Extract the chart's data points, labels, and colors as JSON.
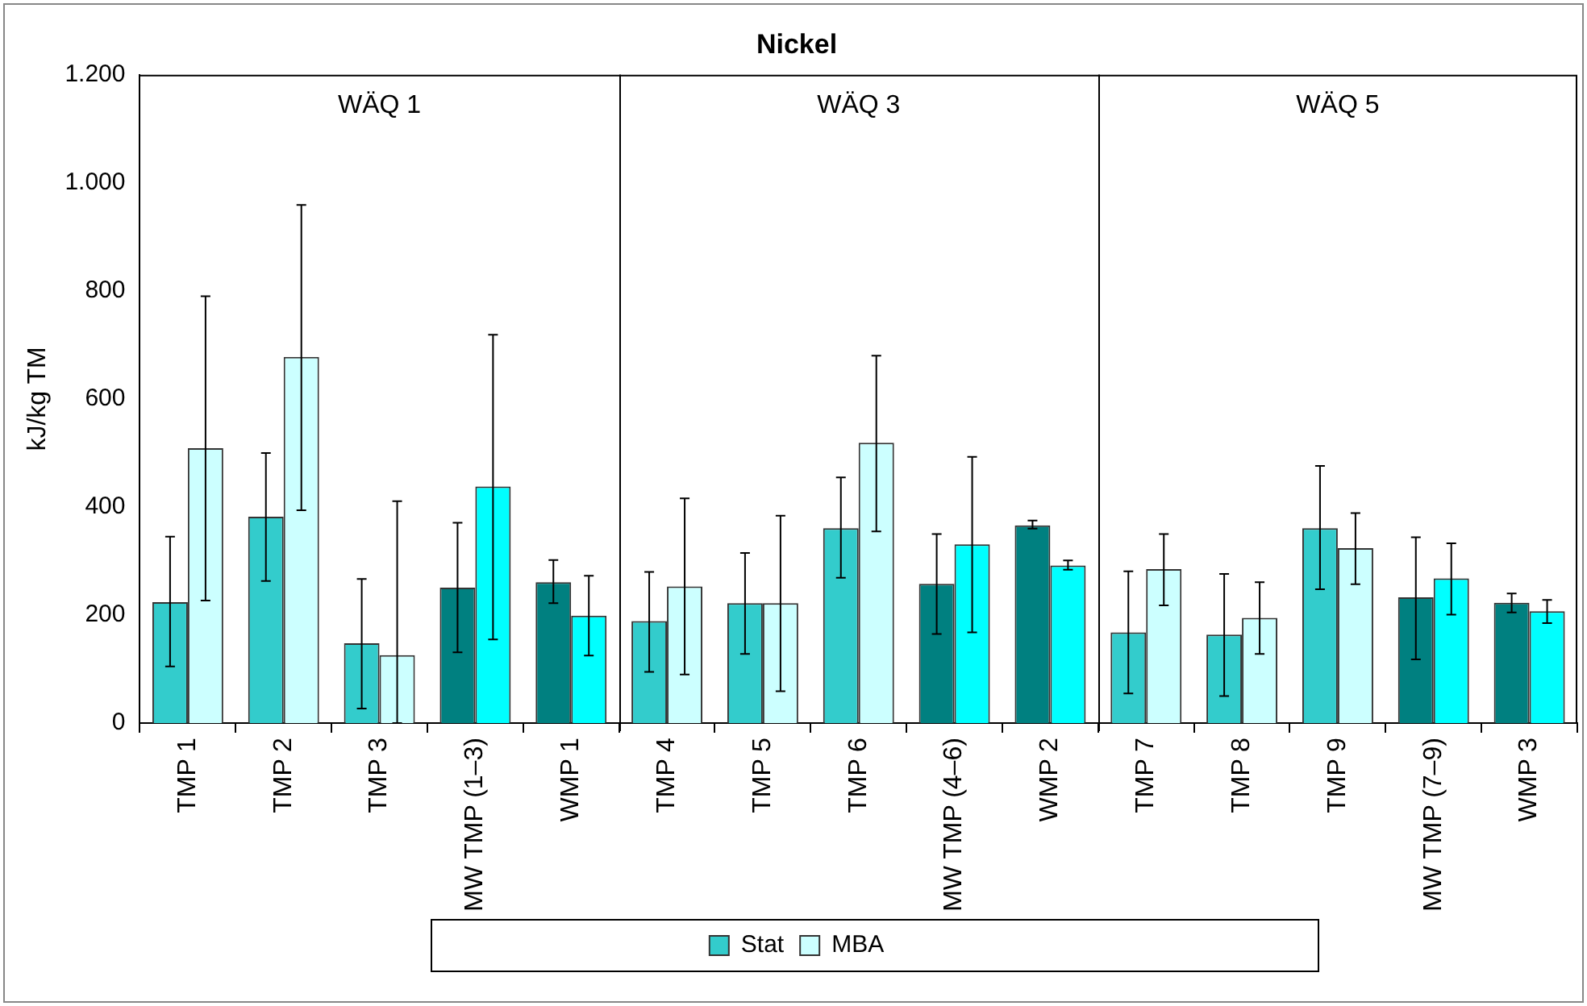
{
  "chart_data": {
    "type": "bar",
    "title": "Nickel",
    "ylabel": "kJ/kg TM",
    "categories": [
      "TMP 1",
      "TMP 2",
      "TMP 3",
      "MW TMP (1–3)",
      "WMP 1",
      "TMP 4",
      "TMP 5",
      "TMP 6",
      "MW TMP (4–6)",
      "WMP 2",
      "TMP 7",
      "TMP 8",
      "TMP 9",
      "MW TMP (7–9)",
      "WMP 3"
    ],
    "series": [
      {
        "name": "Stat",
        "color": "#33cccc",
        "colors": [
          "#33cccc",
          "#33cccc",
          "#33cccc",
          "#008080",
          "#008080",
          "#33cccc",
          "#33cccc",
          "#33cccc",
          "#008080",
          "#008080",
          "#33cccc",
          "#33cccc",
          "#33cccc",
          "#008080",
          "#008080"
        ],
        "values": [
          224,
          382,
          148,
          251,
          261,
          189,
          222,
          361,
          258,
          366,
          168,
          164,
          361,
          233,
          223
        ],
        "errors": [
          [
            105,
            345
          ],
          [
            263,
            500
          ],
          [
            27,
            267
          ],
          [
            131,
            371
          ],
          [
            222,
            302
          ],
          [
            95,
            280
          ],
          [
            128,
            315
          ],
          [
            269,
            455
          ],
          [
            165,
            350
          ],
          [
            360,
            375
          ],
          [
            55,
            281
          ],
          [
            50,
            276
          ],
          [
            248,
            476
          ],
          [
            118,
            344
          ],
          [
            205,
            240
          ]
        ]
      },
      {
        "name": "MBA",
        "color": "#ccffff",
        "colors": [
          "#ccffff",
          "#ccffff",
          "#ccffff",
          "#00ffff",
          "#00ffff",
          "#ccffff",
          "#ccffff",
          "#ccffff",
          "#00ffff",
          "#00ffff",
          "#ccffff",
          "#ccffff",
          "#ccffff",
          "#00ffff",
          "#00ffff"
        ],
        "values": [
          509,
          678,
          126,
          438,
          199,
          253,
          222,
          519,
          331,
          292,
          285,
          195,
          324,
          268,
          207
        ],
        "errors": [
          [
            227,
            790
          ],
          [
            394,
            959
          ],
          [
            0,
            411
          ],
          [
            155,
            719
          ],
          [
            125,
            273
          ],
          [
            90,
            416
          ],
          [
            59,
            384
          ],
          [
            355,
            680
          ],
          [
            168,
            493
          ],
          [
            284,
            301
          ],
          [
            218,
            350
          ],
          [
            128,
            261
          ],
          [
            257,
            389
          ],
          [
            201,
            333
          ],
          [
            185,
            228
          ]
        ]
      }
    ],
    "ylim": [
      0,
      1200
    ],
    "yticks": [
      0,
      200,
      400,
      600,
      800,
      {
        "value": 1000,
        "label": "1.000"
      },
      {
        "value": 1200,
        "label": "1.200"
      }
    ],
    "annotations": [
      "WÄQ 1",
      "WÄQ 3",
      "WÄQ 5"
    ],
    "grid": false,
    "legend": "bottom"
  }
}
